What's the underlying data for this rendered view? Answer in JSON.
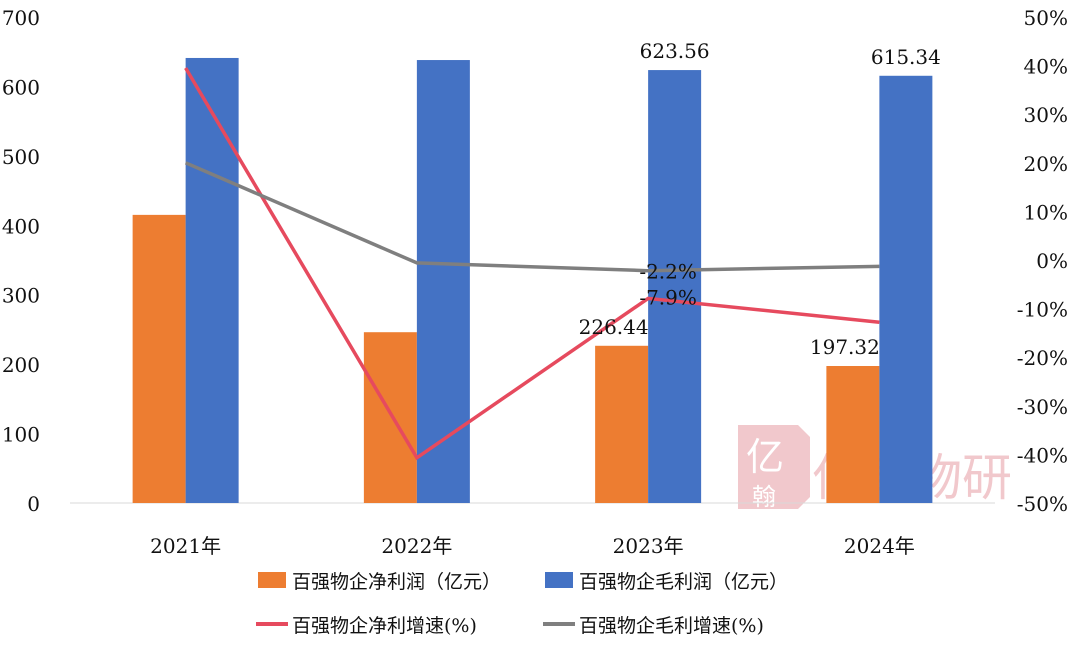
{
  "chart_data": {
    "type": "bar+line",
    "categories": [
      "2021年",
      "2022年",
      "2023年",
      "2024年"
    ],
    "bar_series": [
      {
        "name": "百强物企净利润（亿元）",
        "color": "#ED7D31",
        "values": [
          415,
          246,
          226.44,
          197.32
        ],
        "labels": [
          "",
          "",
          "226.44",
          "197.32"
        ]
      },
      {
        "name": "百强物企毛利润（亿元）",
        "color": "#4472C4",
        "values": [
          641,
          638,
          623.56,
          615.34
        ],
        "labels": [
          "",
          "",
          "623.56",
          "615.34"
        ]
      }
    ],
    "line_series": [
      {
        "name": "百强物企净利增速(%)",
        "color": "#E64A5E",
        "values": [
          39.5,
          -40.7,
          -7.9,
          -12.8
        ],
        "labels": [
          "",
          "",
          "-7.9%",
          ""
        ]
      },
      {
        "name": "百强物企毛利增速(%)",
        "color": "#7F7F7F",
        "values": [
          20,
          -0.6,
          -2.2,
          -1.3
        ],
        "labels": [
          "",
          "",
          "-2.2%",
          ""
        ]
      }
    ],
    "y_left": {
      "range": [
        0,
        700
      ],
      "ticks": [
        "0",
        "100",
        "200",
        "300",
        "400",
        "500",
        "600",
        "700"
      ]
    },
    "y_right": {
      "range": [
        -50,
        50
      ],
      "ticks": [
        "-50%",
        "-40%",
        "-30%",
        "-20%",
        "-10%",
        "0%",
        "10%",
        "20%",
        "30%",
        "40%",
        "50%"
      ]
    },
    "grid": false,
    "legend": "bottom",
    "watermark": "亿翰物研"
  }
}
